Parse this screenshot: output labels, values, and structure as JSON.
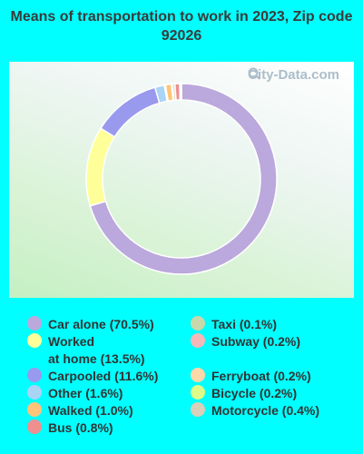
{
  "chart_data": {
    "type": "pie",
    "title": "Means of transportation to work in 2023, Zip code 92026",
    "watermark": "City-Data.com",
    "categories": [
      "Car alone",
      "Worked at home",
      "Carpooled",
      "Other",
      "Walked",
      "Bus",
      "Taxi",
      "Subway",
      "Ferryboat",
      "Bicycle",
      "Motorcycle"
    ],
    "values": [
      70.5,
      13.5,
      11.6,
      1.6,
      1.0,
      0.8,
      0.1,
      0.2,
      0.2,
      0.2,
      0.4
    ],
    "slice_order": [
      "Car alone",
      "Worked at home",
      "Carpooled",
      "Other",
      "Ferryboat",
      "Walked",
      "Bicycle",
      "Motorcycle",
      "Bus",
      "Subway",
      "Taxi"
    ],
    "colors": {
      "Car alone": "#bba8dc",
      "Worked at home": "#ffff99",
      "Carpooled": "#9999ee",
      "Other": "#aad4f5",
      "Walked": "#ffc477",
      "Bus": "#ef8f8f",
      "Taxi": "#c8d8aa",
      "Subway": "#f5b8b8",
      "Ferryboat": "#fdd8a8",
      "Bicycle": "#ddfb88",
      "Motorcycle": "#d8d0b8"
    },
    "legend": [
      {
        "label": "Car alone (70.5%)",
        "color": "#bba8dc"
      },
      {
        "label": "Worked\nat home (13.5%)",
        "color": "#ffff99"
      },
      {
        "label": "Carpooled (11.6%)",
        "color": "#9999ee"
      },
      {
        "label": "Other (1.6%)",
        "color": "#aad4f5"
      },
      {
        "label": "Walked (1.0%)",
        "color": "#ffc477"
      },
      {
        "label": "Bus (0.8%)",
        "color": "#ef8f8f"
      },
      {
        "label": "Taxi (0.1%)",
        "color": "#c8d8aa"
      },
      {
        "label": "Subway (0.2%)",
        "color": "#f5b8b8"
      },
      {
        "label": "Ferryboat (0.2%)",
        "color": "#fdd8a8"
      },
      {
        "label": "Bicycle (0.2%)",
        "color": "#ddfb88"
      },
      {
        "label": "Motorcycle (0.4%)",
        "color": "#d8d0b8"
      }
    ],
    "legend_placement": "bottom"
  }
}
